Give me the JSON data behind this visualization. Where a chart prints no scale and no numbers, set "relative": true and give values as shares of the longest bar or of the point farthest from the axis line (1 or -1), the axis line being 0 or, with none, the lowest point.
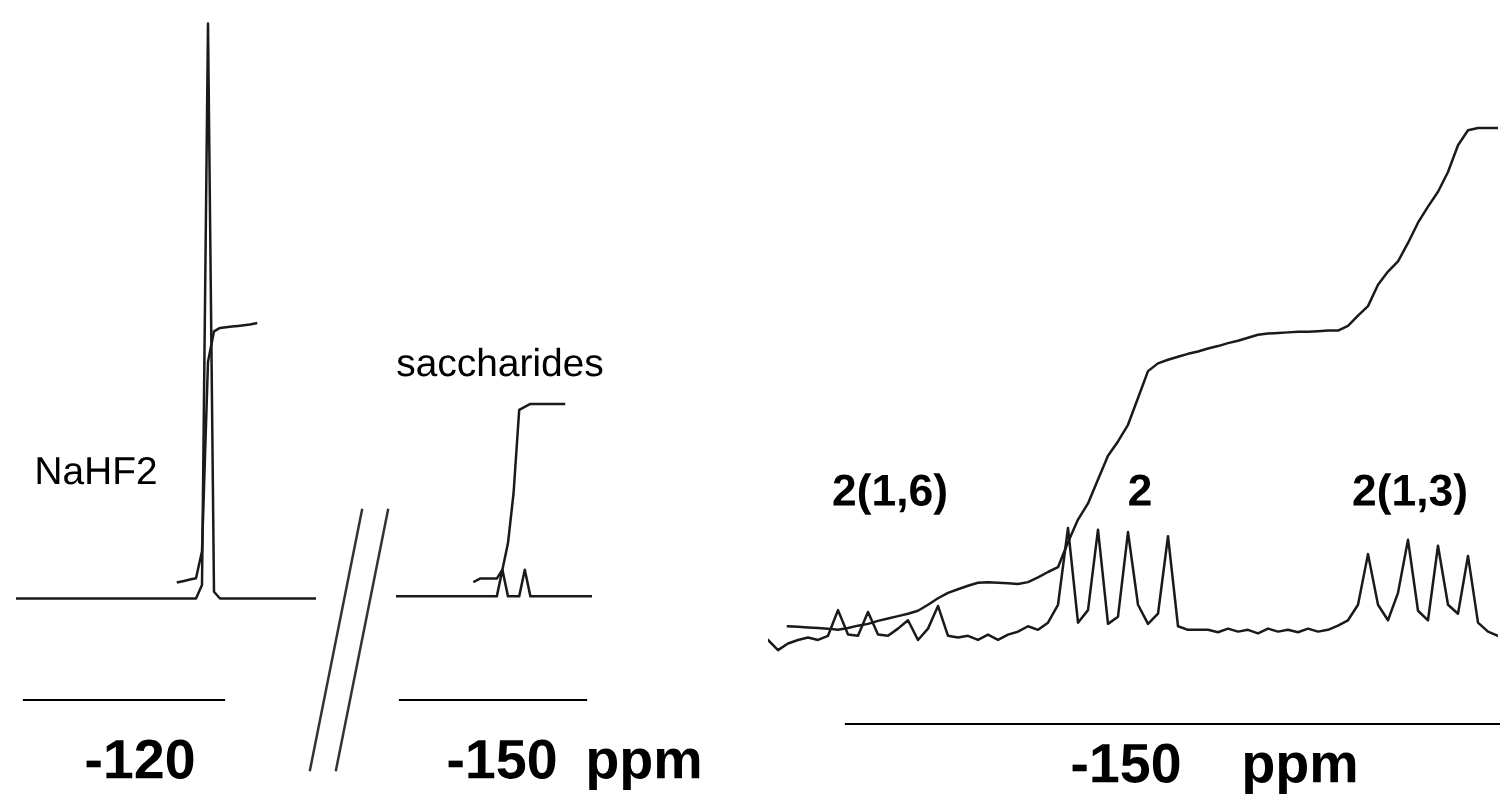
{
  "chart_data": [
    {
      "type": "line",
      "relative": true,
      "line_style": "solid",
      "categories": [
        null,
        null,
        null,
        null,
        null,
        null,
        null,
        null,
        null,
        null,
        null,
        null,
        null,
        null,
        null,
        null,
        null,
        null,
        null,
        null,
        null,
        null,
        null,
        null,
        null,
        null,
        null,
        null,
        null,
        null,
        null,
        null,
        null,
        null,
        null,
        null,
        null,
        null,
        null,
        null,
        null,
        null,
        null,
        null,
        null,
        null,
        null,
        null,
        null,
        null,
        null
      ],
      "series": [
        {
          "color": "#1a1a1a",
          "values": [
            0.15,
            0.15,
            0.15,
            0.15,
            0.15,
            0.15,
            0.15,
            0.15,
            0.15,
            0.15,
            0.15,
            0.15,
            0.15,
            0.15,
            0.15,
            0.15,
            0.15,
            0.15,
            0.15,
            0.15,
            0.15,
            0.15,
            0.15,
            0.15,
            0.15,
            0.15,
            0.15,
            0.15,
            0.15,
            0.15,
            0.15,
            0.17,
            1.0,
            0.16,
            0.15,
            0.15,
            0.15,
            0.15,
            0.15,
            0.15,
            0.15,
            0.15,
            0.15,
            0.15,
            0.15,
            0.15,
            0.15,
            0.15,
            0.15,
            0.15,
            0.15
          ]
        },
        {
          "color": "#1a1a1a",
          "values": [
            null,
            null,
            null,
            null,
            null,
            null,
            null,
            null,
            null,
            null,
            null,
            null,
            null,
            null,
            null,
            null,
            null,
            null,
            null,
            null,
            null,
            null,
            null,
            null,
            null,
            null,
            null,
            0.174,
            0.176,
            0.178,
            0.18,
            0.22,
            0.5,
            0.545,
            0.55,
            0.551,
            0.552,
            0.553,
            0.554,
            0.555,
            0.557,
            null,
            null,
            null,
            null,
            null,
            null,
            null,
            null,
            null,
            null
          ]
        }
      ],
      "annotations": [
        "NaHF2",
        "-120"
      ]
    },
    {
      "type": "line",
      "relative": true,
      "line_style": "solid",
      "xlabel": "ppm",
      "categories": [
        null,
        null,
        null,
        null,
        null,
        null,
        null,
        null,
        null,
        null,
        null,
        null,
        null,
        null,
        null,
        null,
        null,
        null,
        null,
        null,
        null,
        null,
        null,
        null,
        null,
        null,
        null,
        null,
        null,
        null,
        null,
        null,
        null,
        null,
        null,
        null
      ],
      "series": [
        {
          "color": "#1a1a1a",
          "values": [
            0.35,
            0.35,
            0.35,
            0.35,
            0.35,
            0.35,
            0.35,
            0.35,
            0.35,
            0.35,
            0.35,
            0.35,
            0.35,
            0.35,
            0.35,
            0.35,
            0.35,
            0.35,
            0.35,
            0.44,
            0.35,
            0.35,
            0.35,
            0.44,
            0.35,
            0.35,
            0.35,
            0.35,
            0.35,
            0.35,
            0.35,
            0.35,
            0.35,
            0.35,
            0.35,
            0.35
          ]
        },
        {
          "color": "#1a1a1a",
          "values": [
            null,
            null,
            null,
            null,
            null,
            null,
            null,
            null,
            null,
            null,
            null,
            null,
            null,
            null,
            0.4,
            0.41,
            0.41,
            0.41,
            0.41,
            0.44,
            0.53,
            0.7,
            0.98,
            0.99,
            1.0,
            1.0,
            1.0,
            1.0,
            1.0,
            1.0,
            1.0,
            null,
            null,
            null,
            null,
            null
          ]
        }
      ],
      "annotations": [
        "saccharides",
        "-150"
      ]
    },
    {
      "type": "line",
      "relative": true,
      "line_style": "solid",
      "xlabel": "ppm",
      "categories": [
        null,
        null,
        null,
        null,
        null,
        null,
        null,
        null,
        null,
        null,
        null,
        null,
        null,
        null,
        null,
        null,
        null,
        null,
        null,
        null,
        null,
        null,
        null,
        null,
        null,
        null,
        null,
        null,
        null,
        null,
        null,
        null,
        null,
        null,
        null,
        null,
        null,
        null,
        null,
        null,
        null,
        null,
        null,
        null,
        null,
        null,
        null,
        null,
        null,
        null,
        null,
        null,
        null,
        null,
        null,
        null,
        null,
        null,
        null,
        null,
        null,
        null,
        null,
        null,
        null,
        null,
        null,
        null,
        null,
        null,
        null,
        null,
        null,
        null
      ],
      "series": [
        {
          "color": "#1a1a1a",
          "values": [
            0.141,
            0.124,
            0.135,
            0.141,
            0.145,
            0.141,
            0.148,
            0.191,
            0.15,
            0.148,
            0.188,
            0.15,
            0.148,
            0.16,
            0.174,
            0.141,
            0.16,
            0.198,
            0.148,
            0.145,
            0.148,
            0.141,
            0.15,
            0.141,
            0.15,
            0.155,
            0.164,
            0.158,
            0.17,
            0.2,
            0.329,
            0.17,
            0.191,
            0.326,
            0.168,
            0.18,
            0.322,
            0.2,
            0.168,
            0.185,
            0.315,
            0.164,
            0.158,
            0.158,
            0.158,
            0.154,
            0.16,
            0.155,
            0.158,
            0.152,
            0.16,
            0.155,
            0.158,
            0.154,
            0.16,
            0.155,
            0.158,
            0.165,
            0.174,
            0.2,
            0.285,
            0.2,
            0.174,
            0.22,
            0.309,
            0.19,
            0.174,
            0.299,
            0.2,
            0.185,
            0.282,
            0.17,
            0.155,
            0.148
          ]
        },
        {
          "color": "#1a1a1a",
          "values": [
            null,
            null,
            0.164,
            0.163,
            0.162,
            0.161,
            0.16,
            0.158,
            0.161,
            0.165,
            0.168,
            0.173,
            0.177,
            0.181,
            0.185,
            0.19,
            0.2,
            0.211,
            0.22,
            0.226,
            0.232,
            0.237,
            0.238,
            0.237,
            0.236,
            0.235,
            0.238,
            0.246,
            0.255,
            0.263,
            0.305,
            0.343,
            0.37,
            0.41,
            0.45,
            0.474,
            0.502,
            0.547,
            0.592,
            0.605,
            0.611,
            0.616,
            0.621,
            0.625,
            0.63,
            0.634,
            0.639,
            0.643,
            0.648,
            0.653,
            0.655,
            0.656,
            0.657,
            0.658,
            0.658,
            0.659,
            0.66,
            0.66,
            0.668,
            0.685,
            0.701,
            0.737,
            0.759,
            0.776,
            0.807,
            0.841,
            0.868,
            0.893,
            0.926,
            0.971,
            0.996,
            1.0,
            1.0,
            1.0
          ]
        }
      ],
      "annotations": [
        "2(1,6)",
        "2",
        "2(1,3)",
        "-150"
      ]
    }
  ]
}
